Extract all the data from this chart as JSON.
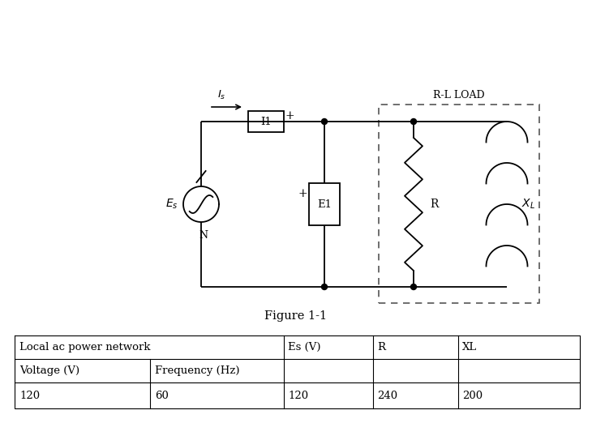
{
  "figure_caption": "Figure 1-1",
  "bg_color": "#ffffff",
  "circuit": {
    "load_box_label": "R-L LOAD",
    "box_label": "I1",
    "voltage_source_label": "E1",
    "resistor_label": "R",
    "inductor_label": "X_L"
  },
  "table": {
    "merged_header": "Local ac power network",
    "col3": "Es (V)",
    "col4": "R",
    "col5": "XL",
    "r1c1": "Voltage (V)",
    "r1c2": "Frequency (Hz)",
    "r2c1": "120",
    "r2c2": "60",
    "r2c3": "120",
    "r2c4": "240",
    "r2c5": "200"
  }
}
